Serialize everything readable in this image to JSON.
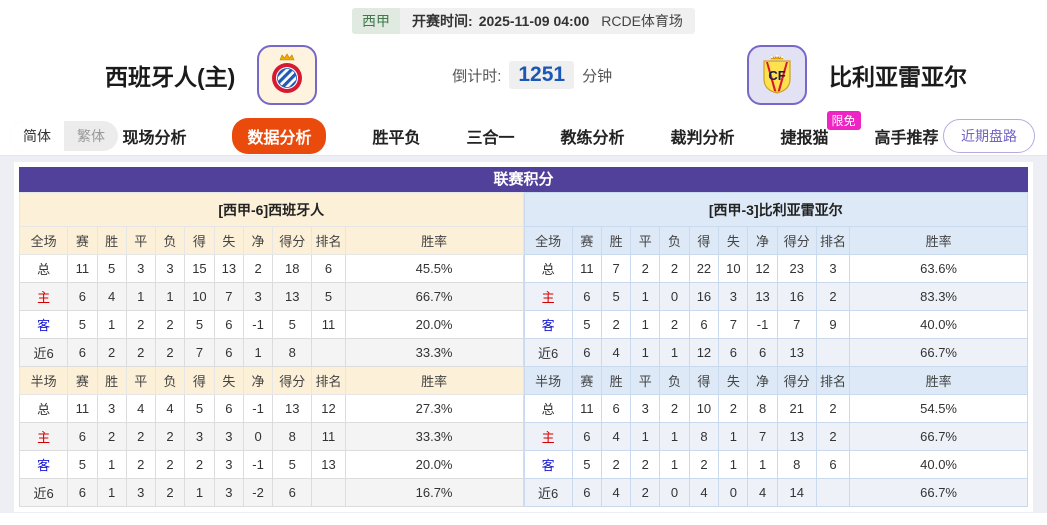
{
  "topbar": {
    "league": "西甲",
    "kickoff_label": "开赛时间:",
    "kickoff_time": "2025-11-09 04:00",
    "venue": "RCDE体育场"
  },
  "header": {
    "home_team": "西班牙人(主)",
    "away_team": "比利亚雷亚尔",
    "countdown_label": "倒计时:",
    "countdown_value": "1251",
    "countdown_unit": "分钟"
  },
  "nav": {
    "lang_simplified": "简体",
    "lang_traditional": "繁体",
    "tabs": [
      {
        "label": "现场分析",
        "active": false
      },
      {
        "label": "数据分析",
        "active": true
      },
      {
        "label": "胜平负",
        "active": false
      },
      {
        "label": "三合一",
        "active": false
      },
      {
        "label": "教练分析",
        "active": false
      },
      {
        "label": "裁判分析",
        "active": false
      },
      {
        "label": "捷报猫",
        "active": false,
        "badge": "限免"
      },
      {
        "label": "高手推荐",
        "active": false
      }
    ],
    "recent_button": "近期盘路"
  },
  "table": {
    "title": "联赛积分",
    "columns_full": [
      "全场",
      "赛",
      "胜",
      "平",
      "负",
      "得",
      "失",
      "净",
      "得分",
      "排名",
      "胜率"
    ],
    "columns_half": [
      "半场",
      "赛",
      "胜",
      "平",
      "负",
      "得",
      "失",
      "净",
      "得分",
      "排名",
      "胜率"
    ],
    "home": {
      "header": "[西甲-6]西班牙人",
      "full": [
        {
          "label": "总",
          "type": "total",
          "cells": [
            "11",
            "5",
            "3",
            "3",
            "15",
            "13",
            "2",
            "18",
            "6",
            "45.5%"
          ]
        },
        {
          "label": "主",
          "type": "home",
          "cells": [
            "6",
            "4",
            "1",
            "1",
            "10",
            "7",
            "3",
            "13",
            "5",
            "66.7%"
          ]
        },
        {
          "label": "客",
          "type": "away",
          "cells": [
            "5",
            "1",
            "2",
            "2",
            "5",
            "6",
            "-1",
            "5",
            "11",
            "20.0%"
          ]
        },
        {
          "label": "近6",
          "type": "recent",
          "cells": [
            "6",
            "2",
            "2",
            "2",
            "7",
            "6",
            "1",
            "8",
            "",
            "33.3%"
          ]
        }
      ],
      "half": [
        {
          "label": "总",
          "type": "total",
          "cells": [
            "11",
            "3",
            "4",
            "4",
            "5",
            "6",
            "-1",
            "13",
            "12",
            "27.3%"
          ]
        },
        {
          "label": "主",
          "type": "home",
          "cells": [
            "6",
            "2",
            "2",
            "2",
            "3",
            "3",
            "0",
            "8",
            "11",
            "33.3%"
          ]
        },
        {
          "label": "客",
          "type": "away",
          "cells": [
            "5",
            "1",
            "2",
            "2",
            "2",
            "3",
            "-1",
            "5",
            "13",
            "20.0%"
          ]
        },
        {
          "label": "近6",
          "type": "recent",
          "cells": [
            "6",
            "1",
            "3",
            "2",
            "1",
            "3",
            "-2",
            "6",
            "",
            "16.7%"
          ]
        }
      ]
    },
    "away": {
      "header": "[西甲-3]比利亚雷亚尔",
      "full": [
        {
          "label": "总",
          "type": "total",
          "cells": [
            "11",
            "7",
            "2",
            "2",
            "22",
            "10",
            "12",
            "23",
            "3",
            "63.6%"
          ]
        },
        {
          "label": "主",
          "type": "home",
          "cells": [
            "6",
            "5",
            "1",
            "0",
            "16",
            "3",
            "13",
            "16",
            "2",
            "83.3%"
          ]
        },
        {
          "label": "客",
          "type": "away",
          "cells": [
            "5",
            "2",
            "1",
            "2",
            "6",
            "7",
            "-1",
            "7",
            "9",
            "40.0%"
          ]
        },
        {
          "label": "近6",
          "type": "recent",
          "cells": [
            "6",
            "4",
            "1",
            "1",
            "12",
            "6",
            "6",
            "13",
            "",
            "66.7%"
          ]
        }
      ],
      "half": [
        {
          "label": "总",
          "type": "total",
          "cells": [
            "11",
            "6",
            "3",
            "2",
            "10",
            "2",
            "8",
            "21",
            "2",
            "54.5%"
          ]
        },
        {
          "label": "主",
          "type": "home",
          "cells": [
            "6",
            "4",
            "1",
            "1",
            "8",
            "1",
            "7",
            "13",
            "2",
            "66.7%"
          ]
        },
        {
          "label": "客",
          "type": "away",
          "cells": [
            "5",
            "2",
            "2",
            "1",
            "2",
            "1",
            "1",
            "8",
            "6",
            "40.0%"
          ]
        },
        {
          "label": "近6",
          "type": "recent",
          "cells": [
            "6",
            "4",
            "2",
            "0",
            "4",
            "0",
            "4",
            "14",
            "",
            "66.7%"
          ]
        }
      ]
    }
  },
  "colors": {
    "title_purple": "#52419b",
    "active_tab_orange": "#ea4a0c",
    "badge_magenta": "#ee25c4",
    "home_section_bg": "#fcf0d8",
    "away_section_bg": "#dde9f7",
    "home_row_label": "#d40000",
    "away_row_label": "#1414d4",
    "league_green": "#42794c",
    "countdown_blue": "#1b57b5",
    "recent_button_purple": "#7264c2"
  }
}
